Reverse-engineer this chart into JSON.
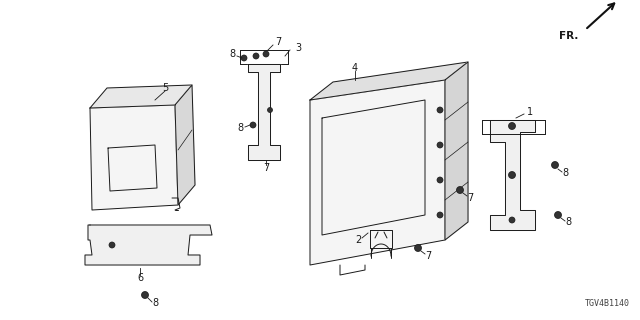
{
  "part_number": "TGV4B1140",
  "bg_color": "#ffffff",
  "line_color": "#1a1a1a",
  "fr_label": "FR.",
  "figsize": [
    6.4,
    3.2
  ],
  "dpi": 100
}
